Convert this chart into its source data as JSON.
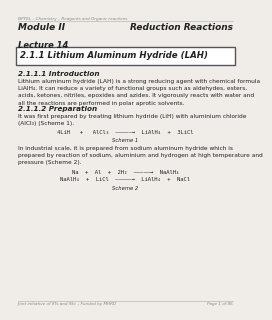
{
  "bg_color": "#f0ede8",
  "header_text": "NPTEL – Chemistry – Reagents and Organic reactions",
  "title_left": "Module II",
  "title_right": "Reduction Reactions",
  "lecture": "Lecture 14",
  "box_title": "2.1.1 Lithium Aluminum Hydride (LAH)",
  "section1_title": "2.1.1.1 Introduction",
  "section1_body": "Lithium aluminum hydride (LAH) is a strong reducing agent with chemical formula\nLiAlH₄. It can reduce a variety of functional groups such as aldehydes, esters,\nacids, ketones, nitriles, epoxides and azides. It vigorously reacts with water and\nall the reactions are performed in polar aprotic solvents.",
  "section2_title": "2.1.1.2 Preparation",
  "section2_body": "It was first prepared by treating lithium hydride (LiH) with aluminium chloride\n(AlCl₃) (Scheme 1).",
  "scheme1": "4LiH   +   AlCl₃  —————→  LiAlH₄  +  3LiCl",
  "scheme1_label": "Scheme 1",
  "section2_body2": "In industrial scale, it is prepared from sodium aluminum hydride which is\nprepared by reaction of sodium, aluminium and hydrogen at high temperature and\npressure (Scheme 2).",
  "scheme2_line1": "Na  +  Al  +  2H₂  —————→  NaAlH₄",
  "scheme2_line2": "NaAlH₄  +  LiCl  —————→  LiAlH₄  +  NaCl",
  "scheme2_label": "Scheme 2",
  "footer_left": "Joint initiative of IITs and IISc – Funded by MHRD",
  "footer_right": "Page 1 of 86",
  "text_color": "#222222",
  "gray_color": "#888880"
}
